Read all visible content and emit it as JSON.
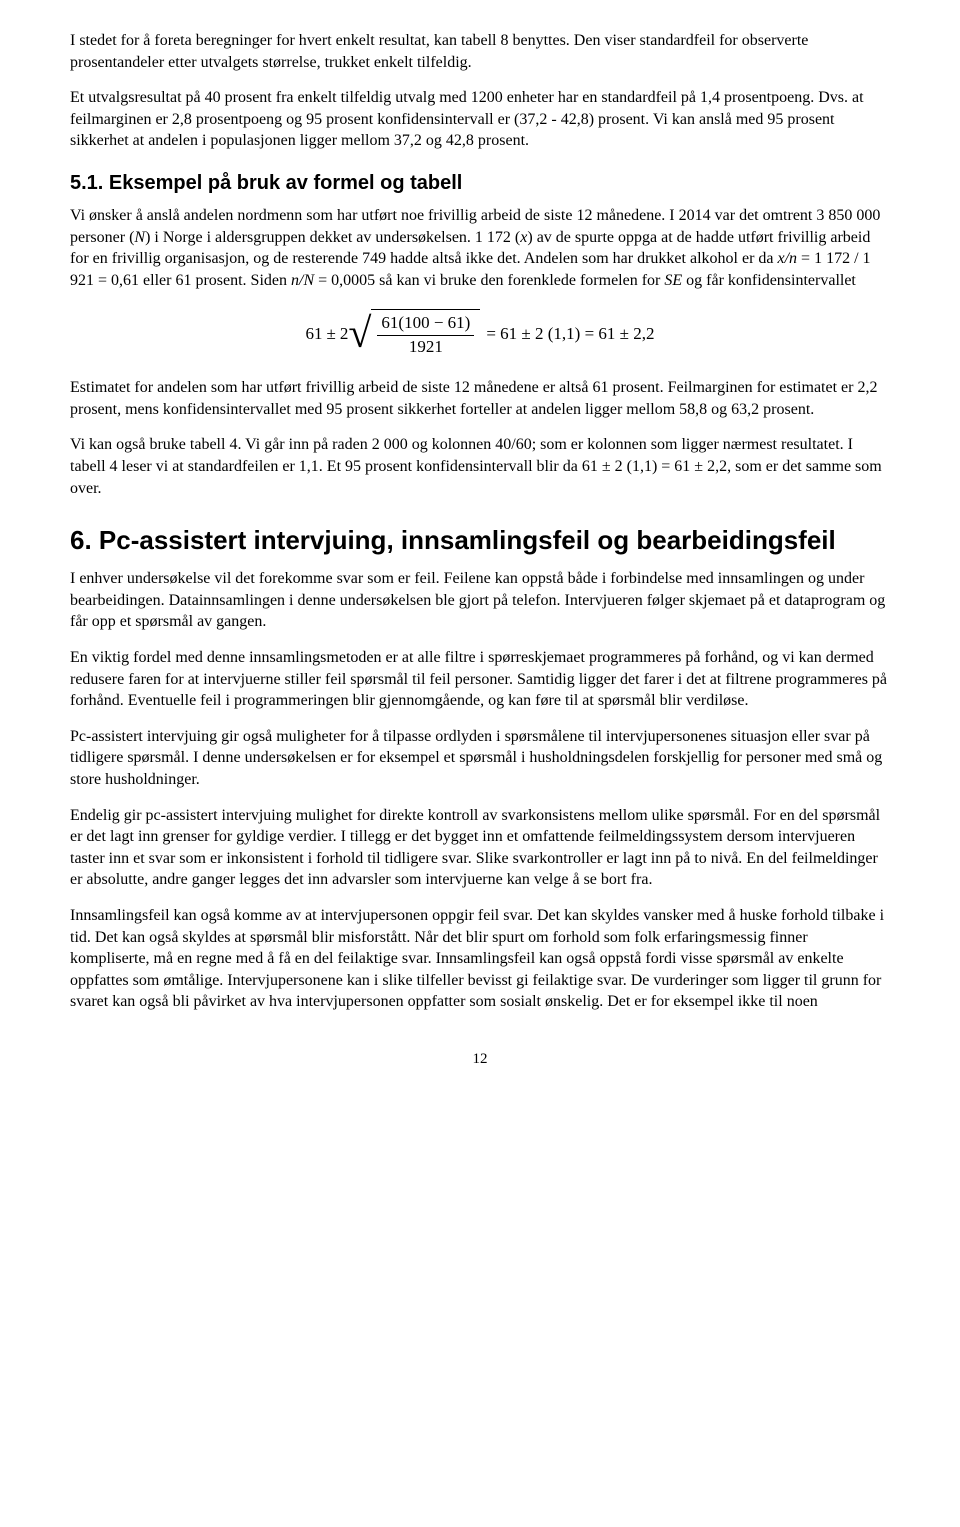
{
  "p1": "I stedet for å foreta beregninger for hvert enkelt resultat, kan tabell 8 benyttes. Den viser standardfeil for observerte prosentandeler etter utvalgets størrelse, trukket enkelt tilfeldig.",
  "p2": "Et utvalgsresultat på 40 prosent fra enkelt tilfeldig utvalg med 1200 enheter har en standardfeil på 1,4 prosentpoeng. Dvs. at feilmarginen er 2,8 prosentpoeng og 95 prosent konfidensintervall er (37,2 - 42,8) prosent. Vi kan anslå med 95 prosent sikkerhet at andelen i populasjonen ligger mellom 37,2 og 42,8 prosent.",
  "h51": "5.1. Eksempel på bruk av formel og tabell",
  "p3a": "Vi ønsker å anslå andelen nordmenn som har utført noe frivillig arbeid de siste 12 månedene. I 2014 var det omtrent 3 850 000 personer (",
  "p3b": ") i Norge i aldersgruppen dekket av undersøkelsen. 1 172 (",
  "p3c": ") av de spurte oppga at de hadde utført frivillig arbeid for en frivillig organisasjon, og de resterende 749 hadde altså ikke det. Andelen som har drukket alkohol er da ",
  "p3d": " = 1 172 / 1 921 = 0,61 eller 61 prosent. Siden ",
  "p3e": " = 0,0005 så kan vi bruke den forenklede formelen for ",
  "p3f": " og får konfidensintervallet",
  "N": "N",
  "x": "x",
  "xn": "x/n",
  "nN": "n/N",
  "SE": "SE",
  "formula": {
    "lhs_a": "61",
    "pm": "±",
    "coef": "2",
    "num": "61(100 − 61)",
    "den": "1921",
    "rhs": "= 61 ± 2 (1,1) = 61 ± 2,2"
  },
  "p4": "Estimatet for andelen som har utført frivillig arbeid de siste 12 månedene er altså 61 prosent. Feilmarginen for estimatet er 2,2 prosent, mens konfidensintervallet med 95 prosent sikkerhet forteller at andelen ligger mellom 58,8 og 63,2 prosent.",
  "p5": "Vi kan også bruke tabell 4. Vi går inn på raden 2 000 og kolonnen 40/60; som er kolonnen som ligger nærmest resultatet. I tabell 4 leser vi at standardfeilen er 1,1. Et 95 prosent konfidensintervall blir da 61 ± 2 (1,1) = 61 ± 2,2, som er det samme som over.",
  "h6": "6. Pc-assistert intervjuing, innsamlingsfeil og bearbeidingsfeil",
  "p6": "I enhver undersøkelse vil det forekomme svar som er feil. Feilene kan oppstå både i forbindelse med innsamlingen og under bearbeidingen. Datainnsamlingen i denne undersøkelsen ble gjort på telefon. Intervjueren følger skjemaet på et dataprogram og får opp et spørsmål av gangen.",
  "p7": "En viktig fordel med denne innsamlingsmetoden er at alle filtre i spørreskjemaet programmeres på forhånd, og vi kan dermed redusere faren for at intervjuerne stiller feil spørsmål til feil personer. Samtidig ligger det farer i det at filtrene programmeres på forhånd. Eventuelle feil i programmeringen blir gjennomgående, og kan føre til at spørsmål blir verdiløse.",
  "p8": "Pc-assistert intervjuing gir også muligheter for å tilpasse ordlyden i spørsmålene til intervjupersonenes situasjon eller svar på tidligere spørsmål. I denne undersøkelsen er for eksempel et spørsmål i husholdningsdelen forskjellig for personer med små og store husholdninger.",
  "p9": "Endelig gir pc-assistert intervjuing mulighet for direkte kontroll av svarkonsistens mellom ulike spørsmål. For en del spørsmål er det lagt inn grenser for gyldige verdier. I tillegg er det bygget inn et omfattende feilmeldingssystem dersom intervjueren taster inn et svar som er inkonsistent i forhold til tidligere svar. Slike svarkontroller er lagt inn på to nivå. En del feilmeldinger er absolutte, andre ganger legges det inn advarsler som intervjuerne kan velge å se bort fra.",
  "p10": "Innsamlingsfeil kan også komme av at intervjupersonen oppgir feil svar. Det kan skyldes vansker med å huske forhold tilbake i tid. Det kan også skyldes at spørsmål blir misforstått. Når det blir spurt om forhold som folk erfaringsmessig finner kompliserte, må en regne med å få en del feilaktige svar. Innsamlingsfeil kan også oppstå fordi visse spørsmål av enkelte oppfattes som ømtålige. Intervjupersonene kan i slike tilfeller bevisst gi feilaktige svar. De vurderinger som ligger til grunn for svaret kan også bli påvirket av hva intervjupersonen oppfatter som sosialt ønskelig. Det er for eksempel ikke til noen",
  "page": "12"
}
